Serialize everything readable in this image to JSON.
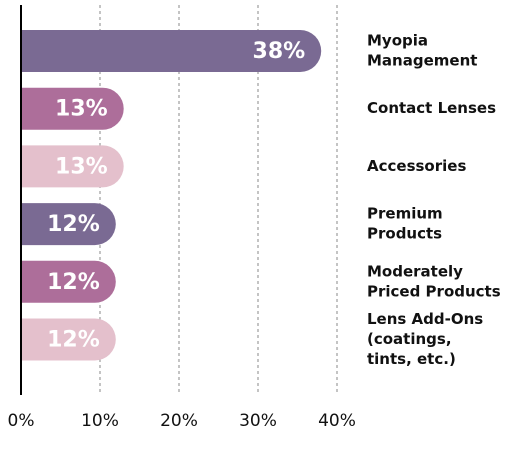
{
  "chart_data": {
    "type": "bar",
    "orientation": "horizontal",
    "categories": [
      [
        "Myopia",
        "Management"
      ],
      [
        "Contact Lenses"
      ],
      [
        "Accessories"
      ],
      [
        "Premium",
        "Products"
      ],
      [
        "Moderately",
        "Priced Products"
      ],
      [
        "Lens Add-Ons",
        "(coatings,",
        "tints, etc.)"
      ]
    ],
    "values": [
      38,
      13,
      13,
      12,
      12,
      12
    ],
    "value_labels": [
      "38%",
      "13%",
      "13%",
      "12%",
      "12%",
      "12%"
    ],
    "colors": [
      "#7a6a93",
      "#ad6e9a",
      "#e4c0cc",
      "#7a6a93",
      "#ad6e9a",
      "#e4c0cc"
    ],
    "xlim": [
      0,
      40
    ],
    "xticks": [
      {
        "value": 0,
        "label": "0%"
      },
      {
        "value": 10,
        "label": "10%"
      },
      {
        "value": 20,
        "label": "20%"
      },
      {
        "value": 30,
        "label": "30%"
      },
      {
        "value": 40,
        "label": "40%"
      }
    ],
    "grid": true
  }
}
